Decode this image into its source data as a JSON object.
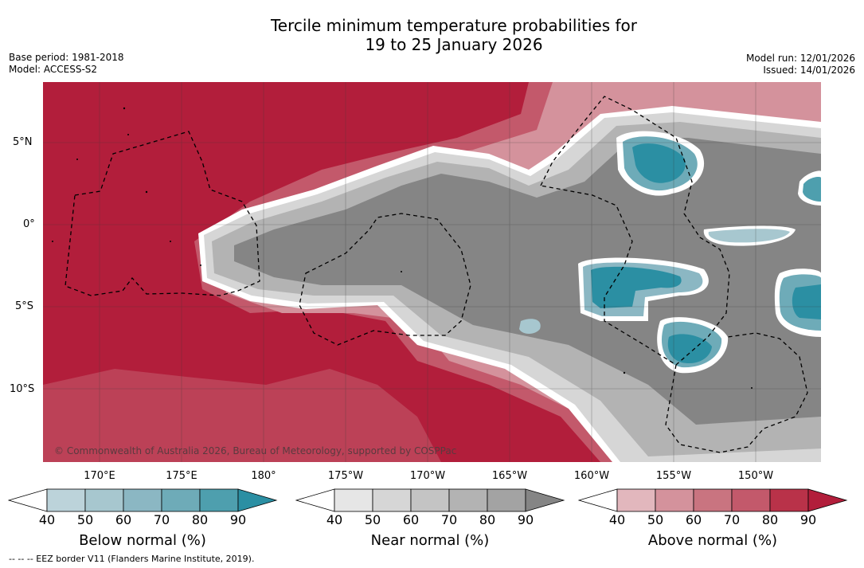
{
  "title_line1": "Tercile minimum temperature probabilities for",
  "title_line2": "19 to 25 January 2026",
  "base_period": "Base period: 1981-2018",
  "model": "Model: ACCESS-S2",
  "model_run": "Model run: 12/01/2026",
  "issued": "Issued: 14/01/2026",
  "copyright": "© Commonwealth of Australia 2026, Bureau of Meteorology, supported by COSPPac",
  "lat_labels": [
    "5°N",
    "0°",
    "5°S",
    "10°S"
  ],
  "lon_labels": [
    "170°E",
    "175°E",
    "180°",
    "175°W",
    "170°W",
    "165°W",
    "160°W",
    "155°W",
    "150°W"
  ],
  "colorbars": [
    {
      "label": "Below normal (%)",
      "ticks": [
        "40",
        "50",
        "60",
        "70",
        "80",
        "90"
      ],
      "colors": [
        "#ffffff",
        "#bcd3da",
        "#a7c7cf",
        "#8bb7c3",
        "#6eabb8",
        "#4e9fae",
        "#2b8fa3"
      ]
    },
    {
      "label": "Near normal (%)",
      "ticks": [
        "40",
        "50",
        "60",
        "70",
        "80",
        "90"
      ],
      "colors": [
        "#ffffff",
        "#e6e6e6",
        "#d6d6d6",
        "#c4c4c4",
        "#b3b3b3",
        "#a3a3a3",
        "#858585"
      ]
    },
    {
      "label": "Above normal (%)",
      "ticks": [
        "40",
        "50",
        "60",
        "70",
        "80",
        "90"
      ],
      "colors": [
        "#ffffff",
        "#e2b7bd",
        "#d4929c",
        "#c97480",
        "#c3596b",
        "#b93249",
        "#b21e3b"
      ]
    }
  ],
  "footnote": "--  --  -- EEZ border V11 (Flanders Marine Institute, 2019)."
}
